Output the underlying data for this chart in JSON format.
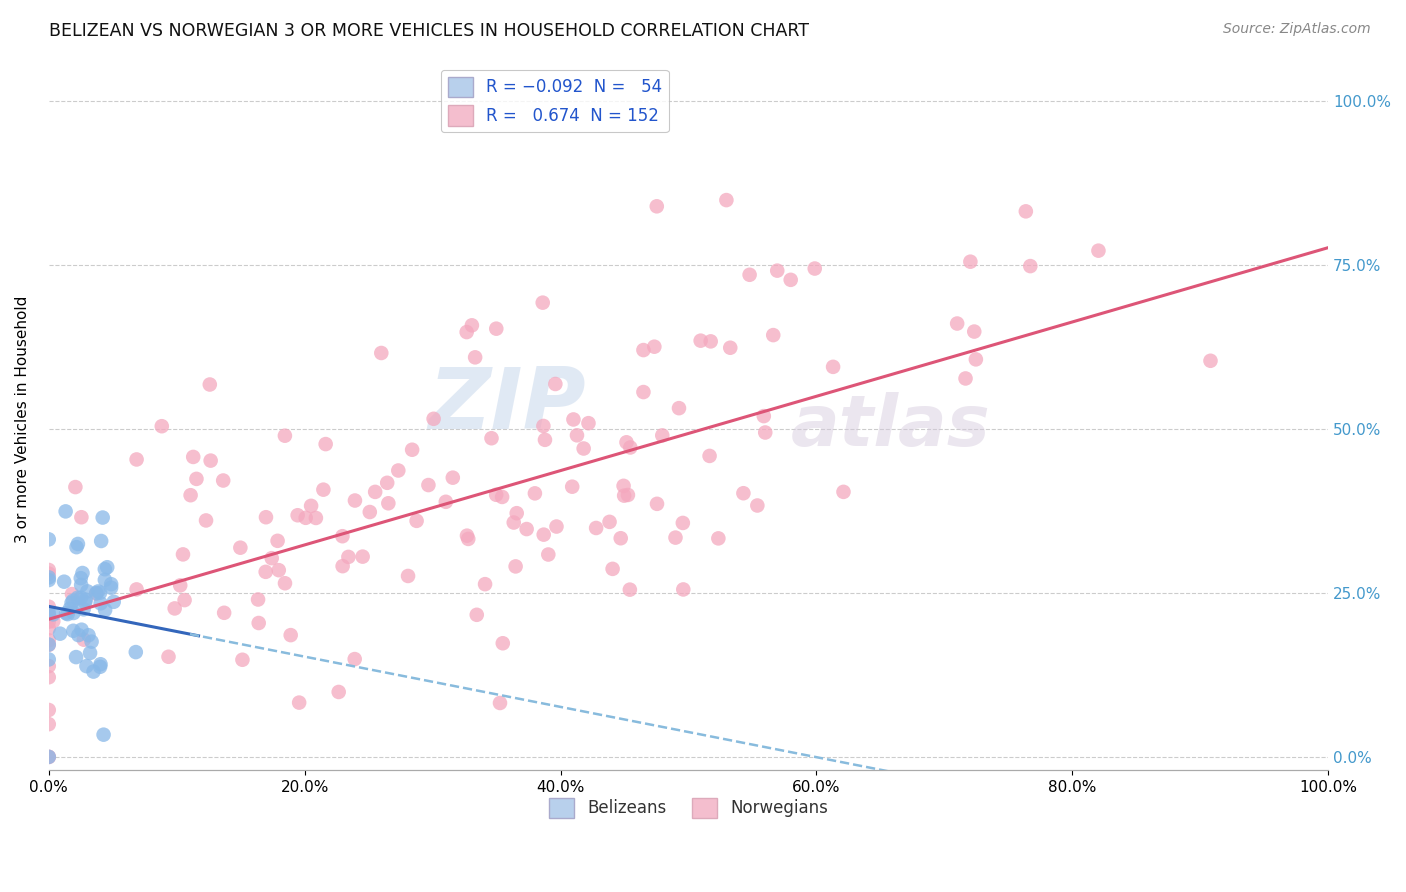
{
  "title": "BELIZEAN VS NORWEGIAN 3 OR MORE VEHICLES IN HOUSEHOLD CORRELATION CHART",
  "source_text": "Source: ZipAtlas.com",
  "ylabel": "3 or more Vehicles in Household",
  "belizean_color": "#88b8e8",
  "norwegian_color": "#f4a8be",
  "trend_belize_solid_color": "#3366bb",
  "trend_belize_dash_color": "#88bbdd",
  "trend_norway_color": "#dd5577",
  "background_color": "#ffffff",
  "grid_color": "#cccccc",
  "xlim": [
    0.0,
    1.0
  ],
  "ylim": [
    -0.02,
    1.05
  ],
  "N_belizean": 54,
  "R_belizean": -0.092,
  "N_norwegian": 152,
  "R_norwegian": 0.674,
  "watermark_zip": "ZIP",
  "watermark_atlas": "atlas",
  "right_tick_color": "#4499cc"
}
